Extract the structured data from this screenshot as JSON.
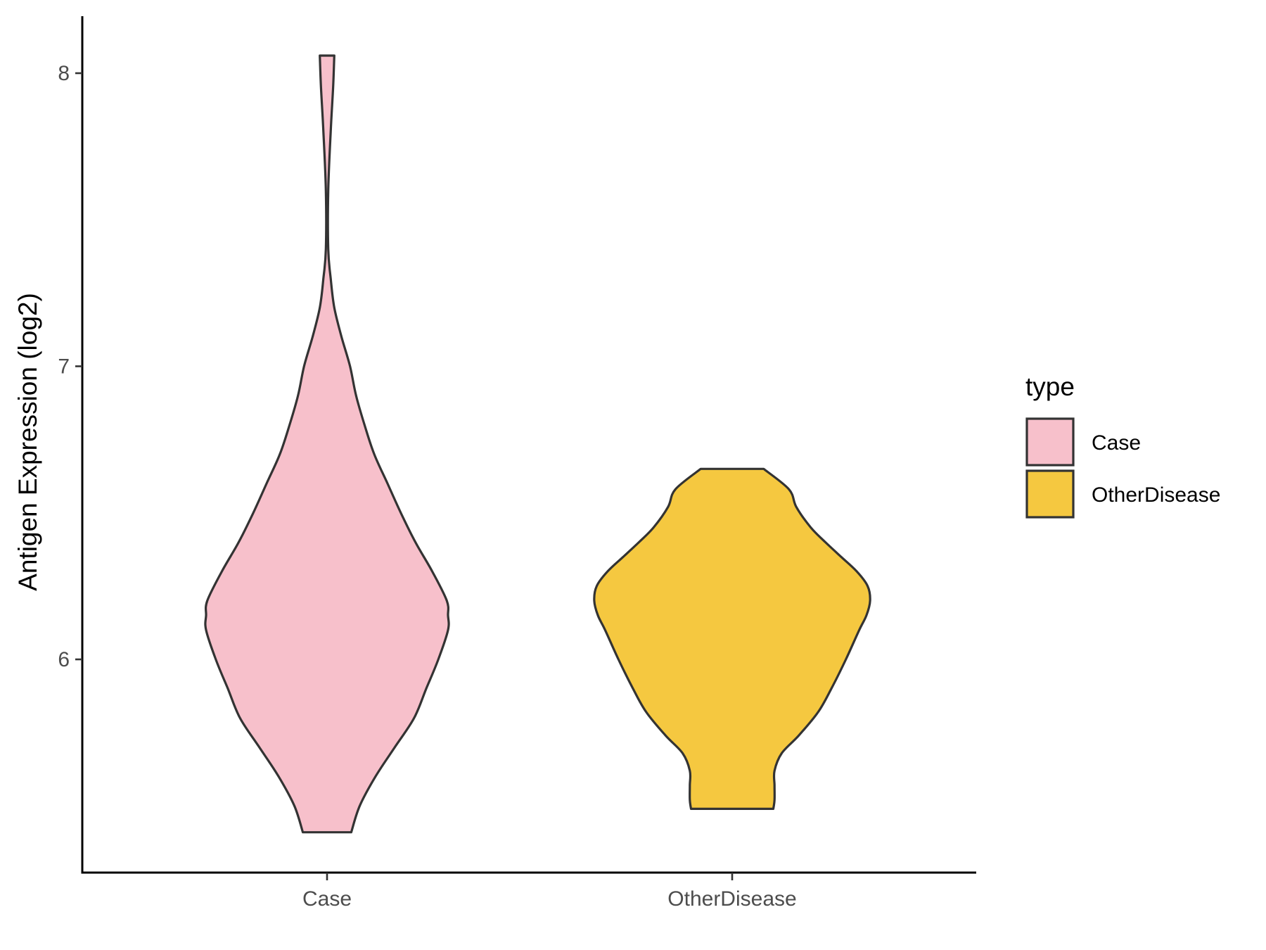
{
  "chart_data": {
    "type": "violin",
    "title": "",
    "xlabel": "",
    "ylabel": "Antigen Expression (log2)",
    "ylim": [
      5.29,
      8.2
    ],
    "y_ticks": [
      "6",
      "7",
      "8"
    ],
    "categories": [
      "Case",
      "OtherDisease"
    ],
    "grid": false,
    "legend": {
      "title": "type",
      "position": "right",
      "items": [
        {
          "label": "Case",
          "color": "#f7c0cb"
        },
        {
          "label": "OtherDisease",
          "color": "#f5c840"
        }
      ]
    },
    "series": [
      {
        "name": "Case",
        "color": "#f7c0cb",
        "min": 5.41,
        "max": 8.06,
        "profile": [
          {
            "y": 5.41,
            "w": 0.2
          },
          {
            "y": 5.5,
            "w": 0.27
          },
          {
            "y": 5.6,
            "w": 0.4
          },
          {
            "y": 5.7,
            "w": 0.56
          },
          {
            "y": 5.8,
            "w": 0.72
          },
          {
            "y": 5.9,
            "w": 0.82
          },
          {
            "y": 6.0,
            "w": 0.92
          },
          {
            "y": 6.1,
            "w": 1.0
          },
          {
            "y": 6.15,
            "w": 1.0
          },
          {
            "y": 6.2,
            "w": 0.99
          },
          {
            "y": 6.3,
            "w": 0.87
          },
          {
            "y": 6.4,
            "w": 0.73
          },
          {
            "y": 6.5,
            "w": 0.61
          },
          {
            "y": 6.6,
            "w": 0.5
          },
          {
            "y": 6.7,
            "w": 0.39
          },
          {
            "y": 6.8,
            "w": 0.31
          },
          {
            "y": 6.9,
            "w": 0.24
          },
          {
            "y": 7.0,
            "w": 0.19
          },
          {
            "y": 7.1,
            "w": 0.12
          },
          {
            "y": 7.2,
            "w": 0.06
          },
          {
            "y": 7.3,
            "w": 0.03
          },
          {
            "y": 7.4,
            "w": 0.01
          },
          {
            "y": 7.6,
            "w": 0.01
          },
          {
            "y": 7.8,
            "w": 0.03
          },
          {
            "y": 7.95,
            "w": 0.05
          },
          {
            "y": 8.06,
            "w": 0.06
          }
        ]
      },
      {
        "name": "OtherDisease",
        "color": "#f5c840",
        "min": 5.49,
        "max": 6.65,
        "profile": [
          {
            "y": 5.49,
            "w": 0.34
          },
          {
            "y": 5.52,
            "w": 0.35
          },
          {
            "y": 5.57,
            "w": 0.35
          },
          {
            "y": 5.62,
            "w": 0.35
          },
          {
            "y": 5.68,
            "w": 0.41
          },
          {
            "y": 5.74,
            "w": 0.55
          },
          {
            "y": 5.82,
            "w": 0.71
          },
          {
            "y": 5.9,
            "w": 0.82
          },
          {
            "y": 6.0,
            "w": 0.94
          },
          {
            "y": 6.1,
            "w": 1.05
          },
          {
            "y": 6.15,
            "w": 1.11
          },
          {
            "y": 6.2,
            "w": 1.14
          },
          {
            "y": 6.25,
            "w": 1.12
          },
          {
            "y": 6.3,
            "w": 1.03
          },
          {
            "y": 6.35,
            "w": 0.9
          },
          {
            "y": 6.4,
            "w": 0.77
          },
          {
            "y": 6.45,
            "w": 0.65
          },
          {
            "y": 6.52,
            "w": 0.53
          },
          {
            "y": 6.58,
            "w": 0.47
          },
          {
            "y": 6.65,
            "w": 0.26
          }
        ]
      }
    ]
  }
}
